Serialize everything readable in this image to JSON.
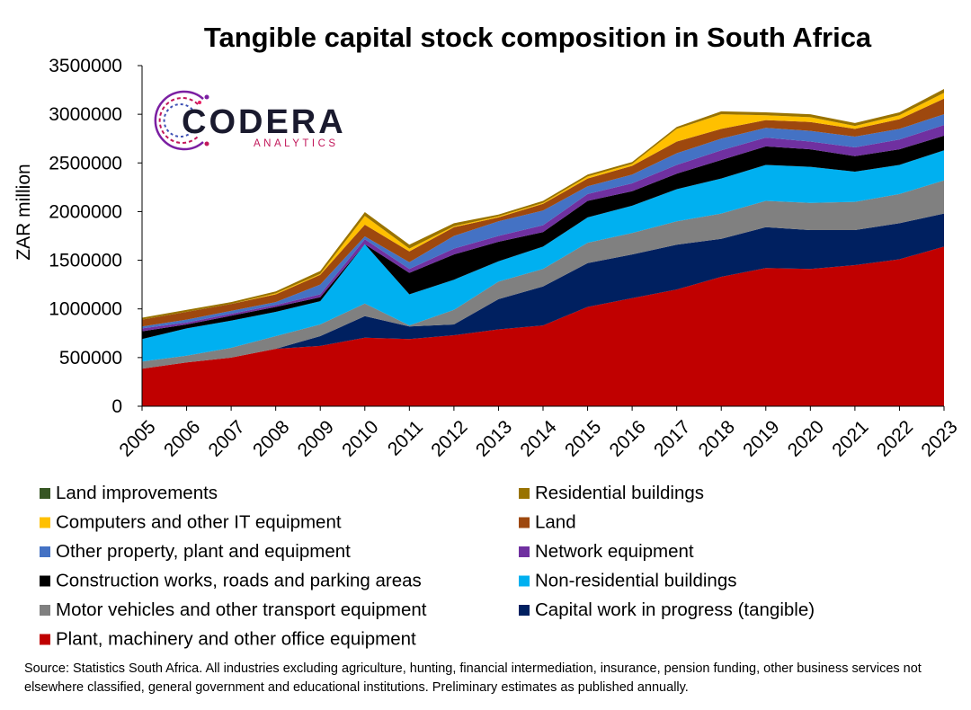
{
  "chart_data": {
    "type": "area",
    "stacked": true,
    "title": "Tangible capital stock composition in South Africa",
    "ylabel": "ZAR million",
    "xlabel": "",
    "ylim": [
      0,
      3500000
    ],
    "yticks": [
      0,
      500000,
      1000000,
      1500000,
      2000000,
      2500000,
      3000000,
      3500000
    ],
    "x": [
      "2005",
      "2006",
      "2007",
      "2008",
      "2009",
      "2010",
      "2011",
      "2012",
      "2013",
      "2014",
      "2015",
      "2016",
      "2017",
      "2018",
      "2019",
      "2020",
      "2021",
      "2022",
      "2023"
    ],
    "grid": false,
    "legend_position": "bottom",
    "series": [
      {
        "name": "Plant, machinery and other office equipment",
        "color": "#C00000",
        "values": [
          385000,
          450000,
          500000,
          590000,
          620000,
          705000,
          690000,
          730000,
          790000,
          830000,
          1020000,
          1110000,
          1200000,
          1330000,
          1420000,
          1410000,
          1450000,
          1510000,
          1640000
        ]
      },
      {
        "name": "Capital work in progress (tangible)",
        "color": "#002060",
        "values": [
          0,
          0,
          0,
          0,
          100000,
          220000,
          130000,
          110000,
          310000,
          400000,
          450000,
          450000,
          460000,
          390000,
          420000,
          400000,
          360000,
          370000,
          340000
        ]
      },
      {
        "name": "Motor vehicles and other transport equipment",
        "color": "#808080",
        "values": [
          75000,
          70000,
          100000,
          130000,
          120000,
          130000,
          10000,
          150000,
          180000,
          180000,
          210000,
          220000,
          240000,
          260000,
          270000,
          280000,
          290000,
          300000,
          340000
        ]
      },
      {
        "name": "Non-residential buildings",
        "color": "#00B0F0",
        "values": [
          230000,
          280000,
          280000,
          250000,
          240000,
          610000,
          320000,
          310000,
          210000,
          230000,
          260000,
          280000,
          330000,
          360000,
          370000,
          370000,
          310000,
          300000,
          310000
        ]
      },
      {
        "name": "Construction works, roads and parking areas",
        "color": "#000000",
        "values": [
          80000,
          40000,
          50000,
          50000,
          40000,
          0,
          220000,
          260000,
          200000,
          150000,
          170000,
          150000,
          160000,
          190000,
          190000,
          180000,
          160000,
          160000,
          150000
        ]
      },
      {
        "name": "Network equipment",
        "color": "#7030A0",
        "values": [
          30000,
          20000,
          20000,
          20000,
          30000,
          50000,
          40000,
          60000,
          60000,
          70000,
          70000,
          80000,
          90000,
          100000,
          90000,
          80000,
          90000,
          100000,
          110000
        ]
      },
      {
        "name": "Other property, plant and equipment",
        "color": "#4472C4",
        "values": [
          20000,
          30000,
          30000,
          30000,
          100000,
          30000,
          70000,
          130000,
          150000,
          150000,
          80000,
          90000,
          120000,
          120000,
          100000,
          110000,
          110000,
          110000,
          110000
        ]
      },
      {
        "name": "Land",
        "color": "#9E480E",
        "values": [
          70000,
          80000,
          70000,
          80000,
          100000,
          120000,
          110000,
          90000,
          40000,
          70000,
          80000,
          90000,
          120000,
          100000,
          80000,
          90000,
          80000,
          100000,
          160000
        ]
      },
      {
        "name": "Computers and other IT equipment",
        "color": "#FFC000",
        "values": [
          0,
          0,
          0,
          10000,
          10000,
          90000,
          30000,
          10000,
          10000,
          10000,
          20000,
          20000,
          130000,
          150000,
          50000,
          50000,
          30000,
          40000,
          60000
        ]
      },
      {
        "name": "Residential buildings",
        "color": "#997300",
        "values": [
          20000,
          20000,
          20000,
          20000,
          30000,
          40000,
          40000,
          30000,
          20000,
          20000,
          20000,
          20000,
          20000,
          30000,
          30000,
          30000,
          30000,
          30000,
          40000
        ]
      },
      {
        "name": "Land improvements",
        "color": "#375623",
        "values": [
          0,
          0,
          0,
          0,
          0,
          0,
          0,
          0,
          0,
          0,
          0,
          0,
          0,
          0,
          0,
          0,
          0,
          0,
          0
        ]
      }
    ]
  },
  "legend": [
    {
      "label": "Land improvements",
      "color": "#375623"
    },
    {
      "label": "Residential buildings",
      "color": "#997300"
    },
    {
      "label": "Computers and other IT equipment",
      "color": "#FFC000"
    },
    {
      "label": "Land",
      "color": "#9E480E"
    },
    {
      "label": "Other property, plant and equipment",
      "color": "#4472C4"
    },
    {
      "label": "Network equipment",
      "color": "#7030A0"
    },
    {
      "label": "Construction works, roads and parking areas",
      "color": "#000000"
    },
    {
      "label": "Non-residential buildings",
      "color": "#00B0F0"
    },
    {
      "label": "Motor vehicles and other transport equipment",
      "color": "#808080"
    },
    {
      "label": "Capital work in progress (tangible)",
      "color": "#002060"
    },
    {
      "label": "Plant, machinery and other office equipment",
      "color": "#C00000"
    }
  ],
  "logo": {
    "main": "CODERA",
    "sub": "ANALYTICS",
    "main_color": "#1A1A2E",
    "sub_color": "#C2185B"
  },
  "source": "Source: Statistics South Africa. All industries excluding agriculture, hunting, financial intermediation, insurance, pension funding, other business services not elsewhere classified, general government and educational institutions. Preliminary estimates as published annually."
}
